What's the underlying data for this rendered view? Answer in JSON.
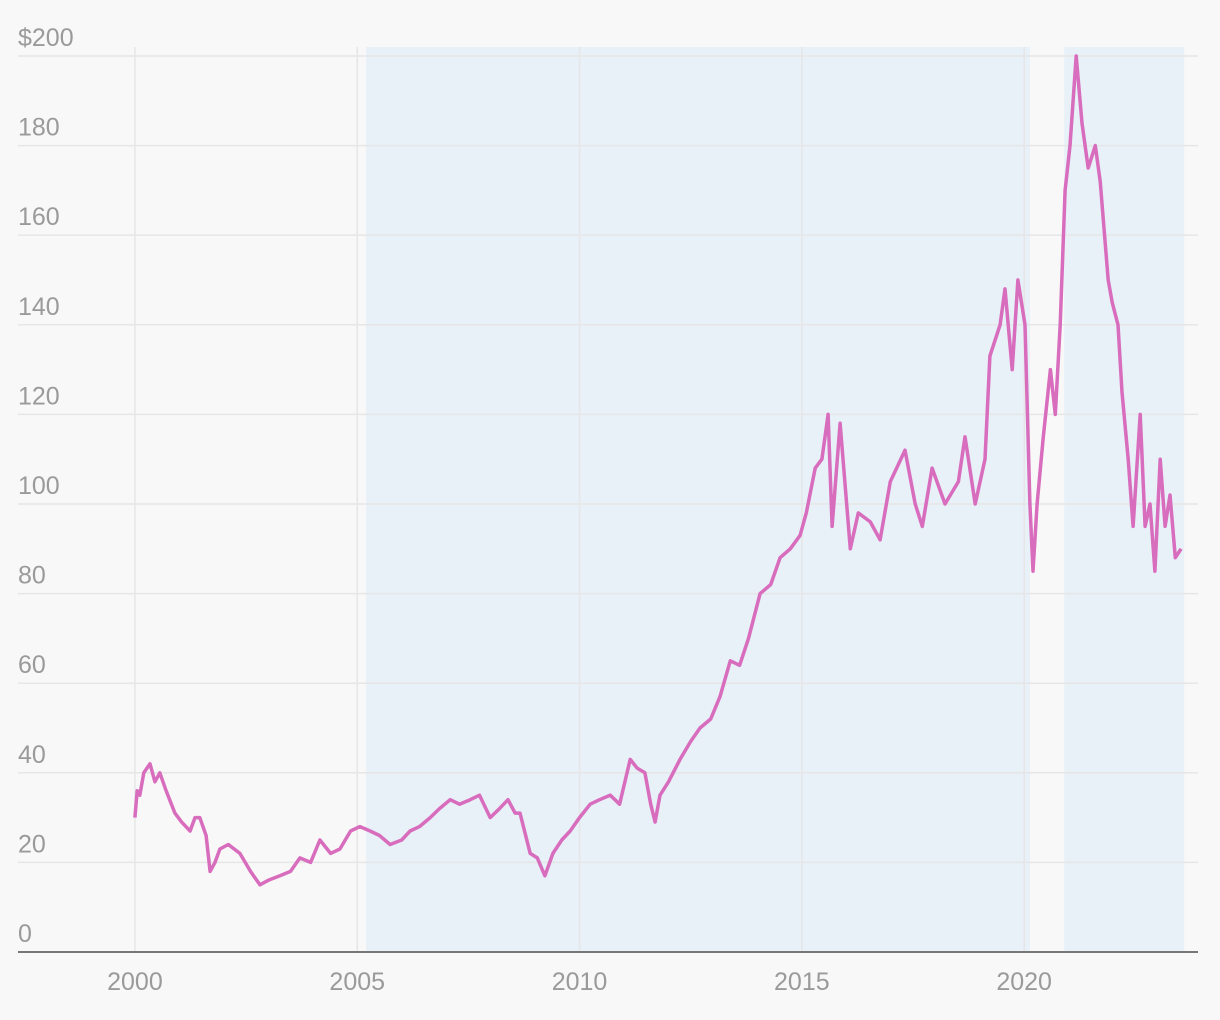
{
  "chart_data": {
    "type": "line",
    "x": [
      2000.0,
      2000.05,
      2000.11,
      2000.2,
      2000.34,
      2000.45,
      2000.56,
      2000.7,
      2000.9,
      2001.05,
      2001.24,
      2001.35,
      2001.46,
      2001.6,
      2001.69,
      2001.8,
      2001.91,
      2002.1,
      2002.36,
      2002.6,
      2002.81,
      2003.0,
      2003.26,
      2003.5,
      2003.71,
      2003.95,
      2004.16,
      2004.4,
      2004.61,
      2004.85,
      2005.06,
      2005.29,
      2005.5,
      2005.74,
      2006.0,
      2006.19,
      2006.4,
      2006.64,
      2006.85,
      2007.09,
      2007.3,
      2007.54,
      2007.75,
      2007.99,
      2008.2,
      2008.39,
      2008.55,
      2008.66,
      2008.89,
      2009.05,
      2009.22,
      2009.4,
      2009.6,
      2009.79,
      2010.0,
      2010.24,
      2010.45,
      2010.69,
      2010.9,
      2011.14,
      2011.3,
      2011.47,
      2011.6,
      2011.7,
      2011.81,
      2012.0,
      2012.26,
      2012.5,
      2012.71,
      2012.95,
      2013.16,
      2013.39,
      2013.6,
      2013.8,
      2014.06,
      2014.3,
      2014.51,
      2014.74,
      2014.96,
      2015.1,
      2015.3,
      2015.45,
      2015.59,
      2015.68,
      2015.86,
      2016.09,
      2016.27,
      2016.54,
      2016.76,
      2016.99,
      2017.32,
      2017.55,
      2017.71,
      2017.93,
      2018.22,
      2018.52,
      2018.67,
      2018.9,
      2019.12,
      2019.23,
      2019.46,
      2019.57,
      2019.73,
      2019.86,
      2020.02,
      2020.13,
      2020.2,
      2020.29,
      2020.43,
      2020.59,
      2020.7,
      2020.81,
      2020.92,
      2021.03,
      2021.17,
      2021.3,
      2021.44,
      2021.6,
      2021.71,
      2021.89,
      2021.98,
      2022.11,
      2022.2,
      2022.34,
      2022.45,
      2022.61,
      2022.72,
      2022.83,
      2022.94,
      2023.06,
      2023.17,
      2023.28,
      2023.4,
      2023.53
    ],
    "series": [
      {
        "color": "#d86cbd",
        "values": [
          30,
          36,
          35,
          40,
          42,
          38,
          40,
          36,
          31,
          29,
          27,
          30,
          30,
          26,
          18,
          20,
          23,
          24,
          22,
          18,
          15,
          16,
          17,
          18,
          21,
          20,
          25,
          22,
          23,
          27,
          28,
          27,
          26,
          24,
          25,
          27,
          28,
          30,
          32,
          34,
          33,
          34,
          35,
          30,
          32,
          34,
          31,
          31,
          22,
          21,
          17,
          22,
          25,
          27,
          30,
          33,
          34,
          35,
          33,
          43,
          41,
          40,
          33,
          29,
          35,
          38,
          43,
          47,
          50,
          52,
          57,
          65,
          64,
          70,
          80,
          82,
          88,
          90,
          93,
          98,
          108,
          110,
          120,
          95,
          118,
          90,
          98,
          96,
          92,
          105,
          112,
          100,
          95,
          108,
          100,
          105,
          115,
          100,
          110,
          133,
          140,
          148,
          130,
          150,
          140,
          100,
          85,
          100,
          115,
          130,
          120,
          140,
          170,
          180,
          200,
          185,
          175,
          180,
          172,
          150,
          145,
          140,
          125,
          110,
          95,
          120,
          95,
          100,
          85,
          110,
          95,
          102,
          88,
          90
        ]
      }
    ],
    "shaded_ranges": [
      [
        2005.2,
        2020.13
      ],
      [
        2020.9,
        2023.6
      ]
    ],
    "shade_color": "#e8f0f8",
    "xlim": [
      1997.37,
      2023.91
    ],
    "xticks": [
      2000,
      2005,
      2010,
      2015,
      2020
    ],
    "ylim": [
      0,
      202
    ],
    "yticks": [
      0,
      20,
      40,
      60,
      80,
      100,
      120,
      140,
      160,
      180,
      {
        "value": 200,
        "label": "$200"
      }
    ],
    "grid": true
  }
}
